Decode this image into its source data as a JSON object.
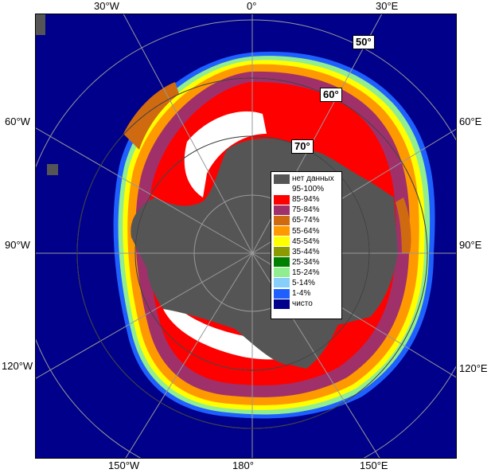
{
  "map": {
    "labels": {
      "top": [
        "30°W",
        "0°",
        "30°E"
      ],
      "bottom": [
        "150°W",
        "180°",
        "150°E"
      ],
      "left": [
        "60°W",
        "90°W",
        "120°W"
      ],
      "right": [
        "60°E",
        "90°E",
        "120°E"
      ],
      "latitudes": [
        "50°",
        "60°",
        "70°"
      ]
    },
    "colors": {
      "ocean": "#00008b",
      "no_data": "#555555",
      "grid": "#999999"
    },
    "legend": [
      {
        "label": "нет данных",
        "color": "#555555"
      },
      {
        "label": "95-100%",
        "color": "#ffffff"
      },
      {
        "label": "85-94%",
        "color": "#ff0000"
      },
      {
        "label": "75-84%",
        "color": "#a0306a"
      },
      {
        "label": "65-74%",
        "color": "#d06a10"
      },
      {
        "label": "55-64%",
        "color": "#ff9900"
      },
      {
        "label": "45-54%",
        "color": "#ffff00"
      },
      {
        "label": "35-44%",
        "color": "#8b9a00"
      },
      {
        "label": "25-34%",
        "color": "#008000"
      },
      {
        "label": "15-24%",
        "color": "#90ee90"
      },
      {
        "label": "5-14%",
        "color": "#87cefa"
      },
      {
        "label": "1-4%",
        "color": "#1e60ff"
      },
      {
        "label": "чисто",
        "color": "#00008b"
      }
    ]
  }
}
